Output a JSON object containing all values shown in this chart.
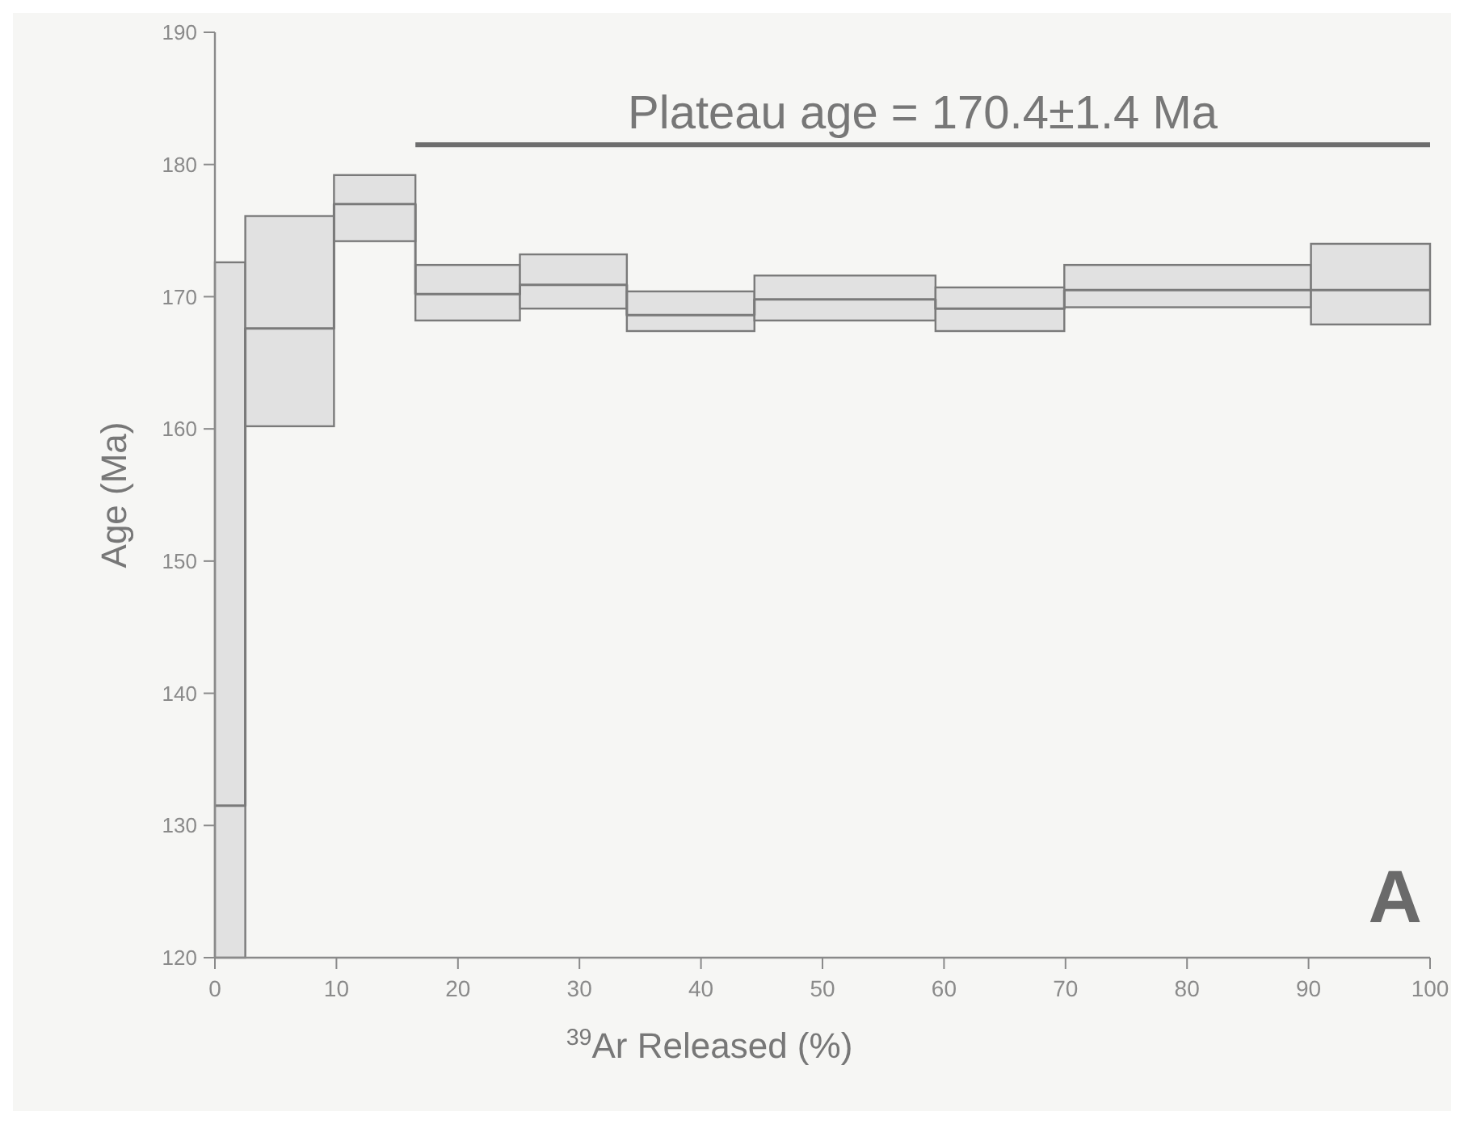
{
  "chart_data": {
    "type": "step",
    "xlabel": "$^{39}$Ar Released (%)",
    "ylabel": "Age (Ma)",
    "xlim": [
      0,
      100
    ],
    "xticks": [
      0,
      10,
      20,
      30,
      40,
      50,
      60,
      70,
      80,
      90,
      100
    ],
    "ylim": [
      120,
      190
    ],
    "yticks": [
      120,
      130,
      140,
      150,
      160,
      170,
      180,
      190
    ],
    "grid": false,
    "series": [
      {
        "color": "#7a7a7a",
        "x": [
          0,
          2.5,
          9.8,
          16.5,
          25.1,
          33.9,
          44.4,
          59.3,
          69.9,
          90.2,
          100
        ],
        "values": [
          131.5,
          167.6,
          177.0,
          170.2,
          170.9,
          168.6,
          169.8,
          169.1,
          170.5,
          170.5,
          170.5
        ],
        "lower": [
          120,
          160.2,
          174.2,
          168.2,
          169.1,
          167.4,
          168.2,
          167.4,
          169.2,
          167.9,
          167.9
        ],
        "upper": [
          172.6,
          176.1,
          179.2,
          172.4,
          173.2,
          170.4,
          171.6,
          170.7,
          172.4,
          174.0,
          174.0
        ]
      },
      {
        "type": "line",
        "color": "#6e6e6e",
        "x": [
          16.5,
          100
        ],
        "values": [
          181.5,
          181.5
        ]
      }
    ],
    "annotations": [
      {
        "text": "Plateau age = 170.4±1.4 Ma",
        "x": 58.25,
        "y": 181.5
      },
      "A"
    ]
  }
}
